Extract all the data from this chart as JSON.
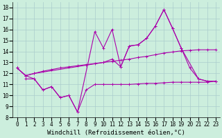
{
  "xlabel": "Windchill (Refroidissement éolien,°C)",
  "background_color": "#cceedd",
  "line_color": "#aa00aa",
  "grid_color": "#aacccc",
  "xlim": [
    -0.5,
    23.5
  ],
  "ylim": [
    8,
    18.5
  ],
  "xticks": [
    0,
    1,
    2,
    3,
    4,
    5,
    6,
    7,
    8,
    9,
    10,
    11,
    12,
    13,
    14,
    15,
    16,
    17,
    18,
    19,
    20,
    21,
    22,
    23
  ],
  "yticks": [
    8,
    9,
    10,
    11,
    12,
    13,
    14,
    15,
    16,
    17,
    18
  ],
  "tick_fontsize": 5.5,
  "xlabel_fontsize": 6.5,
  "s1_x": [
    1,
    2,
    3,
    4,
    5,
    6,
    7,
    8,
    9,
    10,
    11,
    12,
    13,
    14,
    15,
    16,
    17,
    18,
    19,
    20,
    21,
    22,
    23
  ],
  "s1_y": [
    11.5,
    11.5,
    10.5,
    10.8,
    9.8,
    10.0,
    8.5,
    10.5,
    11.0,
    11.0,
    11.0,
    11.0,
    11.0,
    11.05,
    11.1,
    11.1,
    11.15,
    11.2,
    11.2,
    11.2,
    11.2,
    11.2,
    11.3
  ],
  "s2_x": [
    0,
    1,
    2,
    3,
    4,
    5,
    6,
    7,
    8,
    9,
    10,
    11,
    12,
    13,
    14,
    15,
    16,
    17,
    18,
    19,
    20,
    21,
    22,
    23
  ],
  "s2_y": [
    12.5,
    11.8,
    12.0,
    12.2,
    12.35,
    12.5,
    12.6,
    12.7,
    12.8,
    12.9,
    13.0,
    13.1,
    13.2,
    13.3,
    13.45,
    13.55,
    13.7,
    13.85,
    13.95,
    14.05,
    14.1,
    14.15,
    14.15,
    14.15
  ],
  "s3_x": [
    0,
    1,
    2,
    3,
    4,
    5,
    6,
    7,
    9,
    10,
    11,
    12,
    13,
    14,
    15,
    16,
    17,
    18,
    19,
    21,
    22,
    23
  ],
  "s3_y": [
    12.5,
    11.8,
    11.5,
    10.5,
    10.8,
    9.8,
    10.0,
    8.5,
    15.8,
    14.3,
    16.0,
    12.6,
    14.5,
    14.6,
    15.2,
    16.3,
    17.8,
    16.1,
    14.3,
    11.5,
    11.3,
    11.3
  ],
  "s4_x": [
    0,
    1,
    2,
    10,
    11,
    12,
    13,
    14,
    15,
    16,
    17,
    18,
    19,
    20,
    21,
    22,
    23
  ],
  "s4_y": [
    12.5,
    11.8,
    12.0,
    13.0,
    13.3,
    12.6,
    14.5,
    14.6,
    15.2,
    16.3,
    17.8,
    16.1,
    14.3,
    12.5,
    11.5,
    11.3,
    11.3
  ]
}
